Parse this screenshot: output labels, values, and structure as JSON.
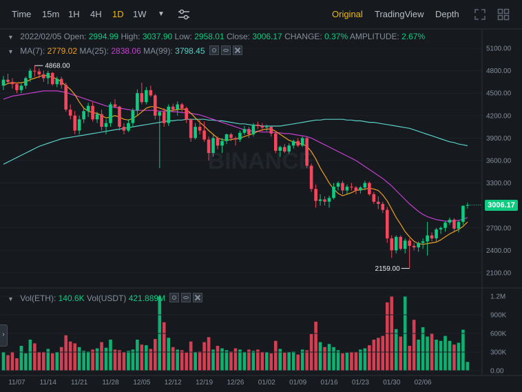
{
  "toolbar": {
    "intervals": [
      "Time",
      "15m",
      "1H",
      "4H",
      "1D",
      "1W"
    ],
    "active_interval": "1D",
    "views": [
      "Original",
      "TradingView",
      "Depth"
    ],
    "active_view": "Original"
  },
  "ohlc": {
    "date": "2022/02/05",
    "open_label": "Open:",
    "open": "2994.99",
    "high_label": "High:",
    "high": "3037.90",
    "low_label": "Low:",
    "low": "2958.01",
    "close_label": "Close:",
    "close": "3006.17",
    "change_label": "CHANGE:",
    "change": "0.37%",
    "amplitude_label": "AMPLITUDE:",
    "amplitude": "2.67%"
  },
  "ma": {
    "ma7_label": "MA(7):",
    "ma7": "2779.02",
    "ma25_label": "MA(25):",
    "ma25": "2838.06",
    "ma99_label": "MA(99):",
    "ma99": "3798.45"
  },
  "vol": {
    "eth_label": "Vol(ETH):",
    "eth": "140.6K",
    "usdt_label": "Vol(USDT)",
    "usdt": "421.889M"
  },
  "last_price": "3006.17",
  "watermark": "BINANCE",
  "colors": {
    "up": "#0ecb81",
    "down": "#f6465d",
    "ma7": "#f0a020",
    "ma25": "#c63fd0",
    "ma99": "#5ad0c8",
    "accent": "#f0b90b"
  },
  "chart_data": {
    "type": "candlestick",
    "price_ticks": [
      "5100.00",
      "4800.00",
      "4500.00",
      "4200.00",
      "3900.00",
      "3600.00",
      "3300.00",
      "3000.00",
      "2700.00",
      "2400.00",
      "2100.00"
    ],
    "volume_ticks": [
      "1.2M",
      "900K",
      "600K",
      "300K",
      "0.00"
    ],
    "x_ticks": [
      "11/07",
      "11/14",
      "11/21",
      "11/28",
      "12/05",
      "12/12",
      "12/19",
      "12/26",
      "01/02",
      "01/09",
      "01/16",
      "01/23",
      "01/30",
      "02/06"
    ],
    "annotations": [
      {
        "label": "4868.00",
        "value": 4868
      },
      {
        "label": "2159.00",
        "value": 2159
      }
    ],
    "candles": [
      [
        4600,
        4730,
        4540,
        4680
      ],
      [
        4680,
        4760,
        4620,
        4650
      ],
      [
        4650,
        4700,
        4560,
        4620
      ],
      [
        4620,
        4640,
        4500,
        4540
      ],
      [
        4540,
        4630,
        4500,
        4600
      ],
      [
        4600,
        4720,
        4560,
        4700
      ],
      [
        4700,
        4830,
        4650,
        4800
      ],
      [
        4800,
        4868,
        4720,
        4790
      ],
      [
        4790,
        4830,
        4700,
        4750
      ],
      [
        4750,
        4800,
        4650,
        4700
      ],
      [
        4700,
        4800,
        4620,
        4770
      ],
      [
        4770,
        4780,
        4600,
        4620
      ],
      [
        4620,
        4720,
        4580,
        4690
      ],
      [
        4690,
        4720,
        4560,
        4610
      ],
      [
        4610,
        4640,
        4250,
        4280
      ],
      [
        4280,
        4350,
        4150,
        4200
      ],
      [
        4200,
        4260,
        3950,
        4000
      ],
      [
        4000,
        4200,
        3950,
        4150
      ],
      [
        4150,
        4300,
        4100,
        4260
      ],
      [
        4260,
        4370,
        4180,
        4330
      ],
      [
        4330,
        4380,
        4120,
        4150
      ],
      [
        4150,
        4250,
        4100,
        4220
      ],
      [
        4220,
        4280,
        4000,
        4050
      ],
      [
        4050,
        4150,
        3950,
        4100
      ],
      [
        4100,
        4380,
        4050,
        4350
      ],
      [
        4350,
        4420,
        4300,
        4320
      ],
      [
        4320,
        4330,
        4000,
        4050
      ],
      [
        4050,
        4100,
        3950,
        4000
      ],
      [
        4000,
        4150,
        3980,
        4100
      ],
      [
        4100,
        4300,
        4050,
        4270
      ],
      [
        4270,
        4550,
        4200,
        4500
      ],
      [
        4500,
        4640,
        4350,
        4380
      ],
      [
        4380,
        4580,
        4350,
        4540
      ],
      [
        4540,
        4600,
        4450,
        4470
      ],
      [
        4470,
        4490,
        4150,
        4200
      ],
      [
        4200,
        4260,
        3500,
        4250
      ],
      [
        4250,
        4300,
        4050,
        4100
      ],
      [
        4100,
        4350,
        4060,
        4320
      ],
      [
        4320,
        4360,
        4250,
        4280
      ],
      [
        4280,
        4390,
        4200,
        4350
      ],
      [
        4350,
        4370,
        4250,
        4300
      ],
      [
        4300,
        4320,
        4100,
        4150
      ],
      [
        4150,
        4160,
        3850,
        3900
      ],
      [
        3900,
        4100,
        3880,
        4050
      ],
      [
        4050,
        4150,
        3950,
        4000
      ],
      [
        4000,
        4120,
        3850,
        3880
      ],
      [
        3880,
        3920,
        3600,
        3700
      ],
      [
        3700,
        3950,
        3650,
        3900
      ],
      [
        3900,
        3920,
        3750,
        3800
      ],
      [
        3800,
        3900,
        3700,
        3860
      ],
      [
        3860,
        3960,
        3820,
        3950
      ],
      [
        3950,
        3970,
        3860,
        3900
      ],
      [
        3900,
        3920,
        3800,
        3880
      ],
      [
        3880,
        4000,
        3850,
        3970
      ],
      [
        3970,
        4060,
        3940,
        4020
      ],
      [
        4020,
        4050,
        3900,
        3950
      ],
      [
        3950,
        4100,
        3920,
        4080
      ],
      [
        4080,
        4120,
        4020,
        4060
      ],
      [
        4060,
        4100,
        3990,
        4040
      ],
      [
        4040,
        4080,
        3990,
        4050
      ],
      [
        4050,
        4060,
        3920,
        3960
      ],
      [
        3960,
        3980,
        3700,
        3730
      ],
      [
        3730,
        3800,
        3650,
        3780
      ],
      [
        3780,
        3820,
        3700,
        3720
      ],
      [
        3720,
        3830,
        3690,
        3800
      ],
      [
        3800,
        3880,
        3760,
        3860
      ],
      [
        3860,
        3900,
        3780,
        3800
      ],
      [
        3800,
        3920,
        3780,
        3900
      ],
      [
        3900,
        3920,
        3500,
        3530
      ],
      [
        3530,
        3560,
        3180,
        3220
      ],
      [
        3220,
        3280,
        2970,
        3060
      ],
      [
        3060,
        3150,
        3000,
        3080
      ],
      [
        3080,
        3120,
        3000,
        3050
      ],
      [
        3050,
        3130,
        2970,
        3100
      ],
      [
        3100,
        3300,
        3080,
        3250
      ],
      [
        3250,
        3320,
        3200,
        3300
      ],
      [
        3300,
        3330,
        3150,
        3200
      ],
      [
        3200,
        3280,
        3150,
        3250
      ],
      [
        3250,
        3300,
        3200,
        3240
      ],
      [
        3240,
        3260,
        3150,
        3200
      ],
      [
        3200,
        3260,
        3160,
        3240
      ],
      [
        3240,
        3330,
        3200,
        3300
      ],
      [
        3300,
        3320,
        3130,
        3150
      ],
      [
        3150,
        3180,
        3020,
        3050
      ],
      [
        3050,
        3120,
        2950,
        3020
      ],
      [
        3020,
        3050,
        2900,
        2940
      ],
      [
        2940,
        2980,
        2500,
        2560
      ],
      [
        2560,
        2600,
        2300,
        2400
      ],
      [
        2400,
        2600,
        2360,
        2580
      ],
      [
        2580,
        2600,
        2400,
        2420
      ],
      [
        2420,
        2560,
        2360,
        2530
      ],
      [
        2530,
        2560,
        2159,
        2460
      ],
      [
        2460,
        2500,
        2400,
        2440
      ],
      [
        2440,
        2520,
        2380,
        2500
      ],
      [
        2500,
        2560,
        2420,
        2520
      ],
      [
        2520,
        2780,
        2330,
        2600
      ],
      [
        2600,
        2640,
        2520,
        2560
      ],
      [
        2560,
        2700,
        2520,
        2680
      ],
      [
        2680,
        2720,
        2620,
        2700
      ],
      [
        2700,
        2790,
        2650,
        2770
      ],
      [
        2770,
        2840,
        2740,
        2810
      ],
      [
        2810,
        2830,
        2640,
        2690
      ],
      [
        2690,
        2800,
        2640,
        2780
      ],
      [
        2780,
        3000,
        2740,
        2995
      ],
      [
        2995,
        3038,
        2958,
        3006
      ]
    ],
    "volumes": [
      300,
      250,
      300,
      200,
      400,
      280,
      500,
      440,
      300,
      300,
      350,
      280,
      300,
      380,
      570,
      470,
      440,
      380,
      320,
      310,
      340,
      360,
      460,
      370,
      500,
      340,
      330,
      300,
      320,
      340,
      500,
      420,
      410,
      350,
      510,
      1200,
      780,
      530,
      380,
      340,
      330,
      290,
      470,
      300,
      310,
      460,
      540,
      340,
      400,
      360,
      330,
      310,
      360,
      340,
      300,
      340,
      320,
      340,
      300,
      300,
      280,
      480,
      350,
      290,
      300,
      310,
      260,
      340,
      330,
      590,
      790,
      460,
      380,
      430,
      380,
      330,
      280,
      290,
      300,
      300,
      340,
      360,
      410,
      500,
      530,
      560,
      1100,
      1200,
      670,
      550,
      1200,
      400,
      820,
      500,
      700,
      550,
      600,
      500,
      480,
      560,
      480,
      420,
      450,
      660,
      141
    ],
    "ma7": [
      4600,
      4630,
      4640,
      4635,
      4640,
      4650,
      4680,
      4700,
      4720,
      4740,
      4730,
      4710,
      4690,
      4650,
      4600,
      4550,
      4480,
      4380,
      4300,
      4260,
      4240,
      4230,
      4200,
      4170,
      4180,
      4200,
      4180,
      4150,
      4140,
      4160,
      4200,
      4250,
      4300,
      4320,
      4320,
      4300,
      4280,
      4260,
      4270,
      4280,
      4290,
      4280,
      4230,
      4170,
      4110,
      4060,
      4000,
      3950,
      3900,
      3880,
      3870,
      3880,
      3890,
      3900,
      3920,
      3940,
      3960,
      3990,
      4010,
      4020,
      4020,
      3990,
      3950,
      3910,
      3870,
      3850,
      3830,
      3820,
      3790,
      3720,
      3620,
      3500,
      3400,
      3300,
      3220,
      3160,
      3130,
      3150,
      3170,
      3200,
      3210,
      3220,
      3230,
      3220,
      3200,
      3140,
      3060,
      2950,
      2840,
      2750,
      2650,
      2580,
      2520,
      2490,
      2480,
      2490,
      2500,
      2510,
      2540,
      2580,
      2620,
      2650,
      2680,
      2720,
      2779
    ],
    "ma25": [
      4420,
      4440,
      4460,
      4470,
      4480,
      4490,
      4500,
      4510,
      4520,
      4530,
      4530,
      4530,
      4530,
      4520,
      4510,
      4490,
      4470,
      4450,
      4430,
      4410,
      4390,
      4370,
      4350,
      4330,
      4320,
      4310,
      4300,
      4290,
      4280,
      4270,
      4270,
      4270,
      4270,
      4270,
      4270,
      4260,
      4260,
      4260,
      4250,
      4250,
      4240,
      4240,
      4230,
      4220,
      4210,
      4190,
      4170,
      4150,
      4130,
      4110,
      4090,
      4070,
      4050,
      4030,
      4010,
      4000,
      3990,
      3990,
      3980,
      3980,
      3980,
      3970,
      3970,
      3960,
      3960,
      3950,
      3940,
      3930,
      3920,
      3900,
      3870,
      3840,
      3810,
      3780,
      3750,
      3720,
      3690,
      3660,
      3630,
      3600,
      3560,
      3520,
      3480,
      3440,
      3400,
      3360,
      3310,
      3260,
      3200,
      3140,
      3080,
      3020,
      2970,
      2920,
      2880,
      2850,
      2830,
      2810,
      2800,
      2790,
      2790,
      2795,
      2800,
      2815,
      2838
    ],
    "ma99": [
      3550,
      3580,
      3610,
      3640,
      3670,
      3700,
      3730,
      3760,
      3790,
      3810,
      3830,
      3850,
      3870,
      3890,
      3900,
      3910,
      3920,
      3930,
      3940,
      3950,
      3960,
      3970,
      3980,
      3990,
      4000,
      4010,
      4020,
      4030,
      4040,
      4050,
      4060,
      4070,
      4080,
      4090,
      4100,
      4110,
      4120,
      4130,
      4130,
      4140,
      4140,
      4150,
      4150,
      4150,
      4150,
      4150,
      4140,
      4140,
      4130,
      4130,
      4120,
      4110,
      4100,
      4090,
      4090,
      4080,
      4070,
      4070,
      4060,
      4060,
      4060,
      4060,
      4060,
      4070,
      4080,
      4090,
      4100,
      4110,
      4120,
      4130,
      4140,
      4140,
      4150,
      4150,
      4150,
      4150,
      4150,
      4140,
      4140,
      4130,
      4130,
      4120,
      4110,
      4110,
      4100,
      4090,
      4080,
      4070,
      4060,
      4050,
      4040,
      4030,
      4010,
      3990,
      3970,
      3950,
      3930,
      3910,
      3890,
      3870,
      3850,
      3840,
      3820,
      3810,
      3798
    ]
  }
}
